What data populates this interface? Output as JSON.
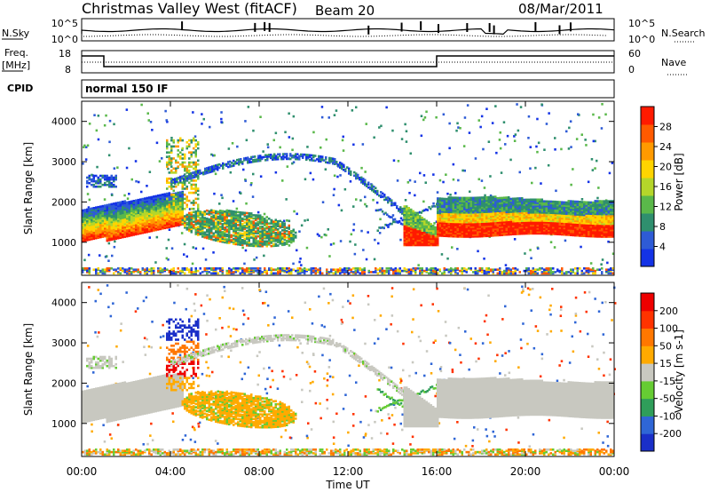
{
  "header": {
    "station": "Christmas Valley West (fitACF)",
    "beam": "Beam 20",
    "date": "08/Mar/2011"
  },
  "sky_panel": {
    "left_label": "N.Sky",
    "left_ticks": [
      "10^5",
      "10^0"
    ],
    "right_ticks": [
      "10^5",
      "10^0"
    ],
    "right_label": "N.Search"
  },
  "freq_panel": {
    "left_label_1": "Freq.",
    "left_label_2": "[MHz]",
    "left_ticks": [
      "18",
      "8"
    ],
    "right_ticks": [
      "60",
      "0"
    ],
    "right_label": "Nave"
  },
  "cpid_panel": {
    "label": "CPID",
    "mode": "normal 150 IF"
  },
  "x_axis": {
    "label": "Time UT",
    "ticks": [
      "00:00",
      "04:00",
      "08:00",
      "12:00",
      "16:00",
      "20:00",
      "00:00"
    ]
  },
  "chart_data": [
    {
      "type": "heatmap",
      "name": "power",
      "x_range_hours": [
        0,
        24
      ],
      "y_range_km": [
        180,
        4500
      ],
      "ylabel": "Slant Range [km]",
      "y_ticks": [
        1000,
        2000,
        3000,
        4000
      ],
      "colorbar_label": "Power [dB]",
      "colorbar_ticks": [
        "28",
        "24",
        "20",
        "16",
        "12",
        "8",
        "4"
      ],
      "colorbar_range": [
        0,
        32
      ],
      "colors": [
        "#1433e6",
        "#2e5bd6",
        "#2f8f6e",
        "#5ab84a",
        "#b5d62a",
        "#ffd400",
        "#ff9a00",
        "#ff5a00",
        "#ff1a00"
      ]
    },
    {
      "type": "heatmap",
      "name": "velocity",
      "x_range_hours": [
        0,
        24
      ],
      "y_range_km": [
        180,
        4500
      ],
      "ylabel": "Slant Range [km]",
      "y_ticks": [
        1000,
        2000,
        3000,
        4000
      ],
      "colorbar_label": "Velocity [m s-1]",
      "colorbar_ticks": [
        "200",
        "100",
        "50",
        "15",
        "-15",
        "-50",
        "-100",
        "-200"
      ],
      "colors": [
        "#1a2fc8",
        "#2f66d6",
        "#2f9e5a",
        "#66cc33",
        "#c8c8c0",
        "#ffaa00",
        "#ff7700",
        "#ff3300",
        "#ee0000"
      ]
    }
  ]
}
